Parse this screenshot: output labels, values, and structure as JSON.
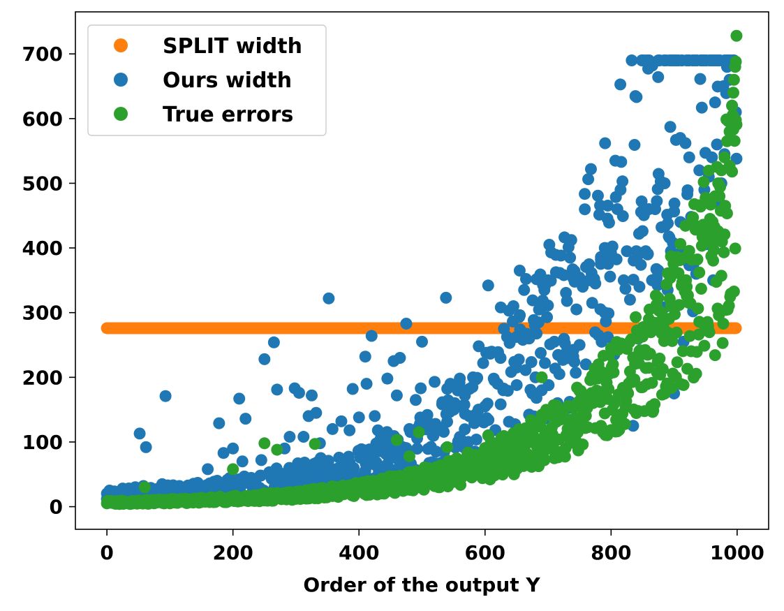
{
  "chart_data": {
    "type": "scatter",
    "title": "",
    "xlabel": "Order of the output Y",
    "ylabel": "",
    "xlim": [
      -50,
      1050
    ],
    "ylim": [
      -35,
      765
    ],
    "xticks": [
      0,
      200,
      400,
      600,
      800,
      1000
    ],
    "yticks": [
      0,
      100,
      200,
      300,
      400,
      500,
      600,
      700
    ],
    "grid": false,
    "legend_position": "top-left",
    "series": [
      {
        "name": "SPLIT width",
        "color": "#ff7f0e",
        "constant_y": 276,
        "x_range": [
          0,
          999
        ],
        "n_points": 1000
      },
      {
        "name": "Ours width",
        "color": "#1f77b4",
        "points": [
          [
            0,
            12
          ],
          [
            8,
            18
          ],
          [
            17,
            22
          ],
          [
            25,
            28
          ],
          [
            33,
            20
          ],
          [
            45,
            30
          ],
          [
            52,
            113
          ],
          [
            57,
            20
          ],
          [
            62,
            92
          ],
          [
            72,
            18
          ],
          [
            80,
            22
          ],
          [
            88,
            34
          ],
          [
            93,
            171
          ],
          [
            100,
            30
          ],
          [
            115,
            32
          ],
          [
            128,
            28
          ],
          [
            135,
            24
          ],
          [
            160,
            58
          ],
          [
            175,
            40
          ],
          [
            178,
            129
          ],
          [
            185,
            83
          ],
          [
            200,
            90
          ],
          [
            210,
            167
          ],
          [
            215,
            70
          ],
          [
            220,
            136
          ],
          [
            232,
            42
          ],
          [
            245,
            72
          ],
          [
            250,
            228
          ],
          [
            265,
            254
          ],
          [
            270,
            181
          ],
          [
            282,
            90
          ],
          [
            290,
            108
          ],
          [
            298,
            183
          ],
          [
            305,
            176
          ],
          [
            312,
            108
          ],
          [
            320,
            140
          ],
          [
            325,
            172
          ],
          [
            332,
            145
          ],
          [
            338,
            98
          ],
          [
            352,
            322
          ],
          [
            358,
            120
          ],
          [
            372,
            132
          ],
          [
            385,
            118
          ],
          [
            390,
            182
          ],
          [
            400,
            138
          ],
          [
            410,
            232
          ],
          [
            412,
            190
          ],
          [
            420,
            264
          ],
          [
            425,
            140
          ],
          [
            430,
            118
          ],
          [
            440,
            95
          ],
          [
            445,
            198
          ],
          [
            455,
            225
          ],
          [
            460,
            172
          ],
          [
            465,
            230
          ],
          [
            475,
            283
          ],
          [
            480,
            120
          ],
          [
            490,
            165
          ],
          [
            498,
            183
          ],
          [
            500,
            255
          ],
          [
            510,
            130
          ],
          [
            520,
            193
          ],
          [
            535,
            158
          ],
          [
            538,
            323
          ],
          [
            545,
            190
          ],
          [
            552,
            160
          ],
          [
            560,
            198
          ],
          [
            568,
            172
          ],
          [
            575,
            140
          ],
          [
            580,
            185
          ],
          [
            590,
            248
          ],
          [
            597,
            222
          ],
          [
            600,
            155
          ],
          [
            605,
            342
          ],
          [
            615,
            195
          ],
          [
            620,
            190
          ],
          [
            625,
            308
          ],
          [
            630,
            275
          ],
          [
            638,
            303
          ],
          [
            645,
            310
          ],
          [
            650,
            215
          ],
          [
            655,
            365
          ],
          [
            660,
            258
          ],
          [
            662,
            335
          ],
          [
            665,
            352
          ],
          [
            670,
            260
          ],
          [
            675,
            175
          ],
          [
            680,
            200
          ],
          [
            685,
            285
          ],
          [
            690,
            180
          ],
          [
            695,
            222
          ],
          [
            700,
            350
          ],
          [
            702,
            405
          ],
          [
            705,
            393
          ],
          [
            710,
            255
          ],
          [
            715,
            160
          ],
          [
            718,
            205
          ],
          [
            725,
            358
          ],
          [
            730,
            318
          ],
          [
            735,
            385
          ],
          [
            740,
            232
          ],
          [
            745,
            305
          ],
          [
            750,
            250
          ],
          [
            755,
            340
          ],
          [
            760,
            220
          ],
          [
            765,
            350
          ],
          [
            770,
            315
          ],
          [
            775,
            345
          ],
          [
            780,
            265
          ],
          [
            785,
            255
          ],
          [
            790,
            300
          ],
          [
            795,
            262
          ],
          [
            800,
            392
          ],
          [
            805,
            235
          ],
          [
            810,
            460
          ],
          [
            815,
            490
          ],
          [
            820,
            350
          ],
          [
            825,
            395
          ],
          [
            830,
            320
          ],
          [
            835,
            125
          ],
          [
            840,
            395
          ],
          [
            845,
            340
          ],
          [
            850,
            426
          ],
          [
            855,
            395
          ],
          [
            858,
            390
          ],
          [
            860,
            460
          ],
          [
            865,
            350
          ],
          [
            870,
            460
          ],
          [
            875,
            365
          ],
          [
            880,
            432
          ],
          [
            885,
            500
          ],
          [
            890,
            438
          ],
          [
            895,
            395
          ],
          [
            898,
            408
          ],
          [
            900,
            175
          ],
          [
            903,
            567
          ],
          [
            906,
            390
          ],
          [
            910,
            440
          ],
          [
            915,
            255
          ],
          [
            918,
            562
          ],
          [
            921,
            483
          ],
          [
            924,
            540
          ],
          [
            927,
            448
          ],
          [
            930,
            302
          ],
          [
            935,
            360
          ],
          [
            940,
            520
          ],
          [
            944,
            617
          ],
          [
            948,
            490
          ],
          [
            952,
            420
          ],
          [
            955,
            510
          ],
          [
            960,
            540
          ],
          [
            962,
            350
          ],
          [
            965,
            625
          ],
          [
            968,
            560
          ],
          [
            972,
            470
          ],
          [
            975,
            500
          ],
          [
            978,
            650
          ],
          [
            980,
            545
          ],
          [
            984,
            680
          ],
          [
            988,
            660
          ],
          [
            992,
            620
          ],
          [
            995,
            690
          ],
          [
            998,
            610
          ],
          [
            999,
            538
          ]
        ]
      },
      {
        "name": "True errors",
        "color": "#2ca02c",
        "points": [
          [
            60,
            30
          ],
          [
            200,
            58
          ],
          [
            250,
            98
          ],
          [
            270,
            88
          ],
          [
            330,
            97
          ],
          [
            460,
            103
          ],
          [
            480,
            78
          ],
          [
            495,
            115
          ],
          [
            540,
            92
          ],
          [
            605,
            110
          ],
          [
            690,
            200
          ],
          [
            780,
            220
          ],
          [
            800,
            245
          ],
          [
            850,
            263
          ],
          [
            860,
            290
          ],
          [
            880,
            300
          ],
          [
            895,
            310
          ],
          [
            920,
            340
          ],
          [
            940,
            362
          ],
          [
            955,
            410
          ],
          [
            960,
            440
          ],
          [
            965,
            480
          ],
          [
            970,
            500
          ],
          [
            975,
            520
          ],
          [
            980,
            540
          ],
          [
            984,
            565
          ],
          [
            988,
            580
          ],
          [
            990,
            600
          ],
          [
            992,
            620
          ],
          [
            994,
            640
          ],
          [
            995,
            660
          ],
          [
            997,
            680
          ],
          [
            998,
            688
          ],
          [
            999,
            728
          ]
        ],
        "trend": "y ≈ 3 + 3.7·exp(4.9·(x/999)); dense band of ~1000 points from 0 to 1000"
      }
    ]
  }
}
